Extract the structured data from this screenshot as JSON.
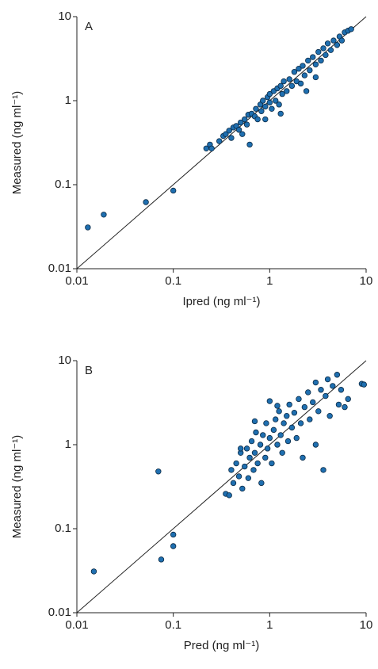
{
  "chart_data": [
    {
      "type": "scatter",
      "title": "A",
      "xlabel": "Ipred (ng ml⁻¹)",
      "ylabel": "Measured (ng ml⁻¹)",
      "log_scale": true,
      "color": "#1f6fb0",
      "xlim": [
        0.01,
        10
      ],
      "ylim": [
        0.01,
        10
      ],
      "xticks": [
        0.01,
        0.1,
        1,
        10
      ],
      "yticks": [
        0.01,
        0.1,
        1,
        10
      ],
      "x": [
        0.013,
        0.019,
        0.052,
        0.1,
        0.22,
        0.24,
        0.25,
        0.3,
        0.33,
        0.35,
        0.38,
        0.4,
        0.42,
        0.45,
        0.48,
        0.5,
        0.52,
        0.55,
        0.58,
        0.6,
        0.62,
        0.65,
        0.7,
        0.72,
        0.75,
        0.8,
        0.82,
        0.85,
        0.9,
        0.95,
        1.0,
        1.0,
        1.05,
        1.1,
        1.15,
        1.2,
        1.25,
        1.3,
        1.35,
        1.4,
        1.5,
        1.6,
        1.7,
        1.8,
        1.9,
        2.0,
        2.1,
        2.2,
        2.3,
        2.5,
        2.6,
        2.8,
        3.0,
        3.2,
        3.4,
        3.6,
        3.8,
        4.0,
        4.3,
        4.6,
        5.0,
        5.3,
        5.6,
        6.0,
        6.5,
        7.0,
        2.4,
        3.0,
        1.3,
        0.9
      ],
      "y": [
        0.031,
        0.044,
        0.062,
        0.085,
        0.27,
        0.3,
        0.27,
        0.33,
        0.38,
        0.4,
        0.44,
        0.36,
        0.48,
        0.5,
        0.45,
        0.55,
        0.4,
        0.6,
        0.52,
        0.68,
        0.3,
        0.7,
        0.65,
        0.8,
        0.6,
        0.9,
        0.75,
        1.0,
        0.85,
        1.1,
        0.95,
        1.2,
        0.8,
        1.3,
        1.0,
        1.4,
        0.9,
        1.5,
        1.2,
        1.7,
        1.3,
        1.8,
        1.5,
        2.2,
        1.7,
        2.4,
        1.6,
        2.6,
        2.0,
        3.0,
        2.3,
        3.3,
        2.7,
        3.8,
        3.0,
        4.2,
        3.5,
        4.8,
        4.0,
        5.2,
        4.6,
        5.8,
        5.2,
        6.5,
        6.8,
        7.1,
        1.3,
        1.9,
        0.7,
        0.6
      ]
    },
    {
      "type": "scatter",
      "title": "B",
      "xlabel": "Pred (ng ml⁻¹)",
      "ylabel": "Measured (ng ml⁻¹)",
      "log_scale": true,
      "color": "#1f6fb0",
      "xlim": [
        0.01,
        10
      ],
      "ylim": [
        0.01,
        10
      ],
      "xticks": [
        0.01,
        0.1,
        1,
        10
      ],
      "yticks": [
        0.01,
        0.1,
        1,
        10
      ],
      "x": [
        0.015,
        0.07,
        0.075,
        0.1,
        0.1,
        0.35,
        0.38,
        0.4,
        0.42,
        0.45,
        0.48,
        0.5,
        0.52,
        0.55,
        0.58,
        0.6,
        0.62,
        0.65,
        0.68,
        0.7,
        0.72,
        0.75,
        0.8,
        0.82,
        0.85,
        0.9,
        0.92,
        0.95,
        1.0,
        1.0,
        1.05,
        1.1,
        1.15,
        1.2,
        1.25,
        1.3,
        1.35,
        1.4,
        1.5,
        1.55,
        1.6,
        1.7,
        1.8,
        1.9,
        2.0,
        2.1,
        2.2,
        2.3,
        2.5,
        2.6,
        2.8,
        3.0,
        3.0,
        3.2,
        3.4,
        3.6,
        3.8,
        4.0,
        4.2,
        4.5,
        5.0,
        5.2,
        5.5,
        6.0,
        6.5,
        9.0,
        9.5,
        0.5,
        0.7,
        1.2
      ],
      "y": [
        0.031,
        0.48,
        0.043,
        0.085,
        0.062,
        0.26,
        0.25,
        0.5,
        0.35,
        0.6,
        0.42,
        0.8,
        0.3,
        0.55,
        0.9,
        0.4,
        0.7,
        1.1,
        0.5,
        0.8,
        1.4,
        0.6,
        1.0,
        0.35,
        1.3,
        0.7,
        1.8,
        0.9,
        1.2,
        3.3,
        0.6,
        1.5,
        2.0,
        1.0,
        2.5,
        1.3,
        0.8,
        1.8,
        2.2,
        1.1,
        3.0,
        1.6,
        2.4,
        1.2,
        3.5,
        1.8,
        0.7,
        2.8,
        4.2,
        2.0,
        3.2,
        5.5,
        1.0,
        2.5,
        4.5,
        0.5,
        3.8,
        6.0,
        2.2,
        5.0,
        6.8,
        3.0,
        4.5,
        2.8,
        3.5,
        5.3,
        5.2,
        0.9,
        1.9,
        2.9
      ]
    }
  ]
}
